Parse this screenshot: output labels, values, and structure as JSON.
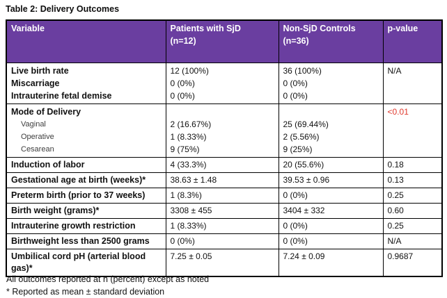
{
  "title": "Table 2: Delivery Outcomes",
  "colors": {
    "header_bg": "#6A3EA0",
    "header_text": "#FFFFFF",
    "significant_p_red": "#E0382B",
    "border": "#000000"
  },
  "table": {
    "headers": {
      "variable": "Variable",
      "sjd_line1": "Patients with SjD",
      "sjd_line2": "(n=12)",
      "control_line1": "Non-SjD Controls",
      "control_line2": "(n=36)",
      "p": "p-value"
    },
    "groups": [
      {
        "lines": [
          {
            "variable": "Live birth rate",
            "sjd": "12 (100%)",
            "control": "36 (100%)",
            "p": "N/A"
          },
          {
            "variable": "Miscarriage",
            "sjd": "0 (0%)",
            "control": "0 (0%)",
            "p": ""
          },
          {
            "variable": "Intrauterine fetal demise",
            "sjd": "0 (0%)",
            "control": "0 (0%)",
            "p": ""
          }
        ]
      },
      {
        "lines": [
          {
            "variable": "Mode of Delivery",
            "sjd": "",
            "control": "",
            "p": "<0.01"
          },
          {
            "variable": "Vaginal",
            "sjd": "2 (16.67%)",
            "control": "25 (69.44%)",
            "p": ""
          },
          {
            "variable": "Operative",
            "sjd": "1 (8.33%)",
            "control": "2 (5.56%)",
            "p": ""
          },
          {
            "variable": "Cesarean",
            "sjd": "9 (75%)",
            "control": "9 (25%)",
            "p": ""
          }
        ]
      }
    ],
    "rows": [
      {
        "variable": "Induction of labor",
        "sjd": "4 (33.3%)",
        "control": "20 (55.6%)",
        "p": "0.18"
      },
      {
        "variable": "Gestational age at birth (weeks)*",
        "sjd": "38.63 ± 1.48",
        "control": "39.53 ± 0.96",
        "p": "0.13"
      },
      {
        "variable": "Preterm birth (prior to 37 weeks)",
        "sjd": "1 (8.3%)",
        "control": "0 (0%)",
        "p": "0.25"
      },
      {
        "variable": "Birth weight (grams)*",
        "sjd": "3308 ± 455",
        "control": "3404 ± 332",
        "p": "0.60"
      },
      {
        "variable": "Intrauterine growth restriction",
        "sjd": "1 (8.33%)",
        "control": "0 (0%)",
        "p": "0.25"
      },
      {
        "variable": "Birthweight less than 2500 grams",
        "sjd": "0 (0%)",
        "control": "0 (0%)",
        "p": "N/A"
      },
      {
        "variable": "Umbilical cord pH (arterial blood gas)*",
        "sjd": "7.25 ± 0.05",
        "control": "7.24 ± 0.09",
        "p": "0.9687"
      }
    ]
  },
  "footnotes": [
    "All outcomes reported at n (percent) except as noted",
    "* Reported as mean ± standard deviation"
  ]
}
